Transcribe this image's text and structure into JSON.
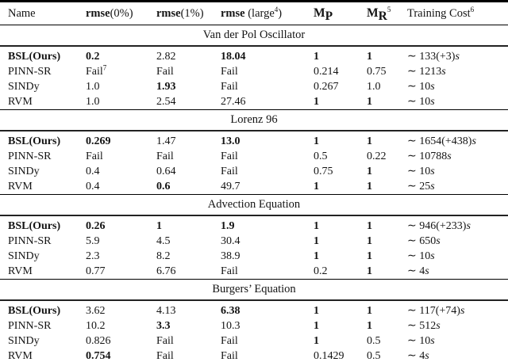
{
  "table": {
    "header": {
      "name": "Name",
      "rmse0_bold": "rmse",
      "rmse0_rest": "(0%)",
      "rmse1_bold": "rmse",
      "rmse1_rest": "(1%)",
      "rmse_large_bold": "rmse",
      "rmse_large_rest": " (large",
      "rmse_large_sup": "4",
      "rmse_large_close": ")",
      "mp_m": "M",
      "mp_sub": "P",
      "mr_m": "M",
      "mr_sub": "R",
      "mr_sup": "5",
      "cost": "Training Cost",
      "cost_sup": "6"
    },
    "sections": [
      {
        "title": "Van der Pol Oscillator",
        "rows": [
          {
            "name": "BSL(Ours)",
            "bold_name": true,
            "values": [
              {
                "t": "0.2",
                "b": true
              },
              {
                "t": "2.82"
              },
              {
                "t": "18.04",
                "b": true
              },
              {
                "t": "1",
                "b": true
              },
              {
                "t": "1",
                "b": true
              },
              {
                "t": "∼ 133(+3)",
                "it": "s"
              }
            ]
          },
          {
            "name": "PINN-SR",
            "values": [
              {
                "t": "Fail",
                "sup": "7"
              },
              {
                "t": "Fail"
              },
              {
                "t": "Fail"
              },
              {
                "t": "0.214"
              },
              {
                "t": "0.75"
              },
              {
                "t": "∼ 1213",
                "it": "s"
              }
            ]
          },
          {
            "name": "SINDy",
            "values": [
              {
                "t": "1.0"
              },
              {
                "t": "1.93",
                "b": true
              },
              {
                "t": "Fail"
              },
              {
                "t": "0.267"
              },
              {
                "t": "1.0"
              },
              {
                "t": "∼ 10",
                "it": "s"
              }
            ]
          },
          {
            "name": "RVM",
            "values": [
              {
                "t": "1.0"
              },
              {
                "t": "2.54"
              },
              {
                "t": "27.46"
              },
              {
                "t": "1",
                "b": true
              },
              {
                "t": "1",
                "b": true
              },
              {
                "t": "∼ 10",
                "it": "s"
              }
            ]
          }
        ]
      },
      {
        "title": "Lorenz 96",
        "rows": [
          {
            "name": "BSL(Ours)",
            "bold_name": true,
            "values": [
              {
                "t": "0.269",
                "b": true
              },
              {
                "t": "1.47"
              },
              {
                "t": "13.0",
                "b": true
              },
              {
                "t": "1",
                "b": true
              },
              {
                "t": "1",
                "b": true
              },
              {
                "t": "∼ 1654(+438)",
                "it": "s"
              }
            ]
          },
          {
            "name": "PINN-SR",
            "values": [
              {
                "t": "Fail"
              },
              {
                "t": "Fail"
              },
              {
                "t": "Fail"
              },
              {
                "t": "0.5"
              },
              {
                "t": "0.22"
              },
              {
                "t": "∼ 10788",
                "it": "s"
              }
            ]
          },
          {
            "name": "SINDy",
            "values": [
              {
                "t": "0.4"
              },
              {
                "t": "0.64"
              },
              {
                "t": "Fail"
              },
              {
                "t": "0.75"
              },
              {
                "t": "1",
                "b": true
              },
              {
                "t": "∼ 10",
                "it": "s"
              }
            ]
          },
          {
            "name": "RVM",
            "values": [
              {
                "t": "0.4"
              },
              {
                "t": "0.6",
                "b": true
              },
              {
                "t": "49.7"
              },
              {
                "t": "1",
                "b": true
              },
              {
                "t": "1",
                "b": true
              },
              {
                "t": "∼ 25",
                "it": "s"
              }
            ]
          }
        ]
      },
      {
        "title": "Advection Equation",
        "rows": [
          {
            "name": "BSL(Ours)",
            "bold_name": true,
            "values": [
              {
                "t": "0.26",
                "b": true
              },
              {
                "t": "1",
                "b": true
              },
              {
                "t": "1.9",
                "b": true
              },
              {
                "t": "1",
                "b": true
              },
              {
                "t": "1",
                "b": true
              },
              {
                "t": "∼ 946(+233)",
                "it": "s"
              }
            ]
          },
          {
            "name": "PINN-SR",
            "values": [
              {
                "t": "5.9"
              },
              {
                "t": "4.5"
              },
              {
                "t": "30.4"
              },
              {
                "t": "1",
                "b": true
              },
              {
                "t": "1",
                "b": true
              },
              {
                "t": "∼ 650",
                "it": "s"
              }
            ]
          },
          {
            "name": "SINDy",
            "values": [
              {
                "t": "2.3"
              },
              {
                "t": "8.2"
              },
              {
                "t": "38.9"
              },
              {
                "t": "1",
                "b": true
              },
              {
                "t": "1",
                "b": true
              },
              {
                "t": "∼ 10",
                "it": "s"
              }
            ]
          },
          {
            "name": "RVM",
            "values": [
              {
                "t": "0.77"
              },
              {
                "t": "6.76"
              },
              {
                "t": "Fail"
              },
              {
                "t": "0.2"
              },
              {
                "t": "1",
                "b": true
              },
              {
                "t": "∼ 4",
                "it": "s"
              }
            ]
          }
        ]
      },
      {
        "title": "Burgers’ Equation",
        "rows": [
          {
            "name": "BSL(Ours)",
            "bold_name": true,
            "values": [
              {
                "t": "3.62"
              },
              {
                "t": "4.13"
              },
              {
                "t": "6.38",
                "b": true
              },
              {
                "t": "1",
                "b": true
              },
              {
                "t": "1",
                "b": true
              },
              {
                "t": "∼ 117(+74)",
                "it": "s"
              }
            ]
          },
          {
            "name": "PINN-SR",
            "values": [
              {
                "t": "10.2"
              },
              {
                "t": "3.3",
                "b": true
              },
              {
                "t": "10.3"
              },
              {
                "t": "1",
                "b": true
              },
              {
                "t": "1",
                "b": true
              },
              {
                "t": "∼ 512",
                "it": "s"
              }
            ]
          },
          {
            "name": "SINDy",
            "values": [
              {
                "t": "0.826"
              },
              {
                "t": "Fail"
              },
              {
                "t": "Fail"
              },
              {
                "t": "1",
                "b": true
              },
              {
                "t": "0.5"
              },
              {
                "t": "∼ 10",
                "it": "s"
              }
            ]
          },
          {
            "name": "RVM",
            "values": [
              {
                "t": "0.754",
                "b": true
              },
              {
                "t": "Fail"
              },
              {
                "t": "Fail"
              },
              {
                "t": "0.1429"
              },
              {
                "t": "0.5"
              },
              {
                "t": "∼ 4",
                "it": "s"
              }
            ]
          }
        ]
      }
    ]
  }
}
